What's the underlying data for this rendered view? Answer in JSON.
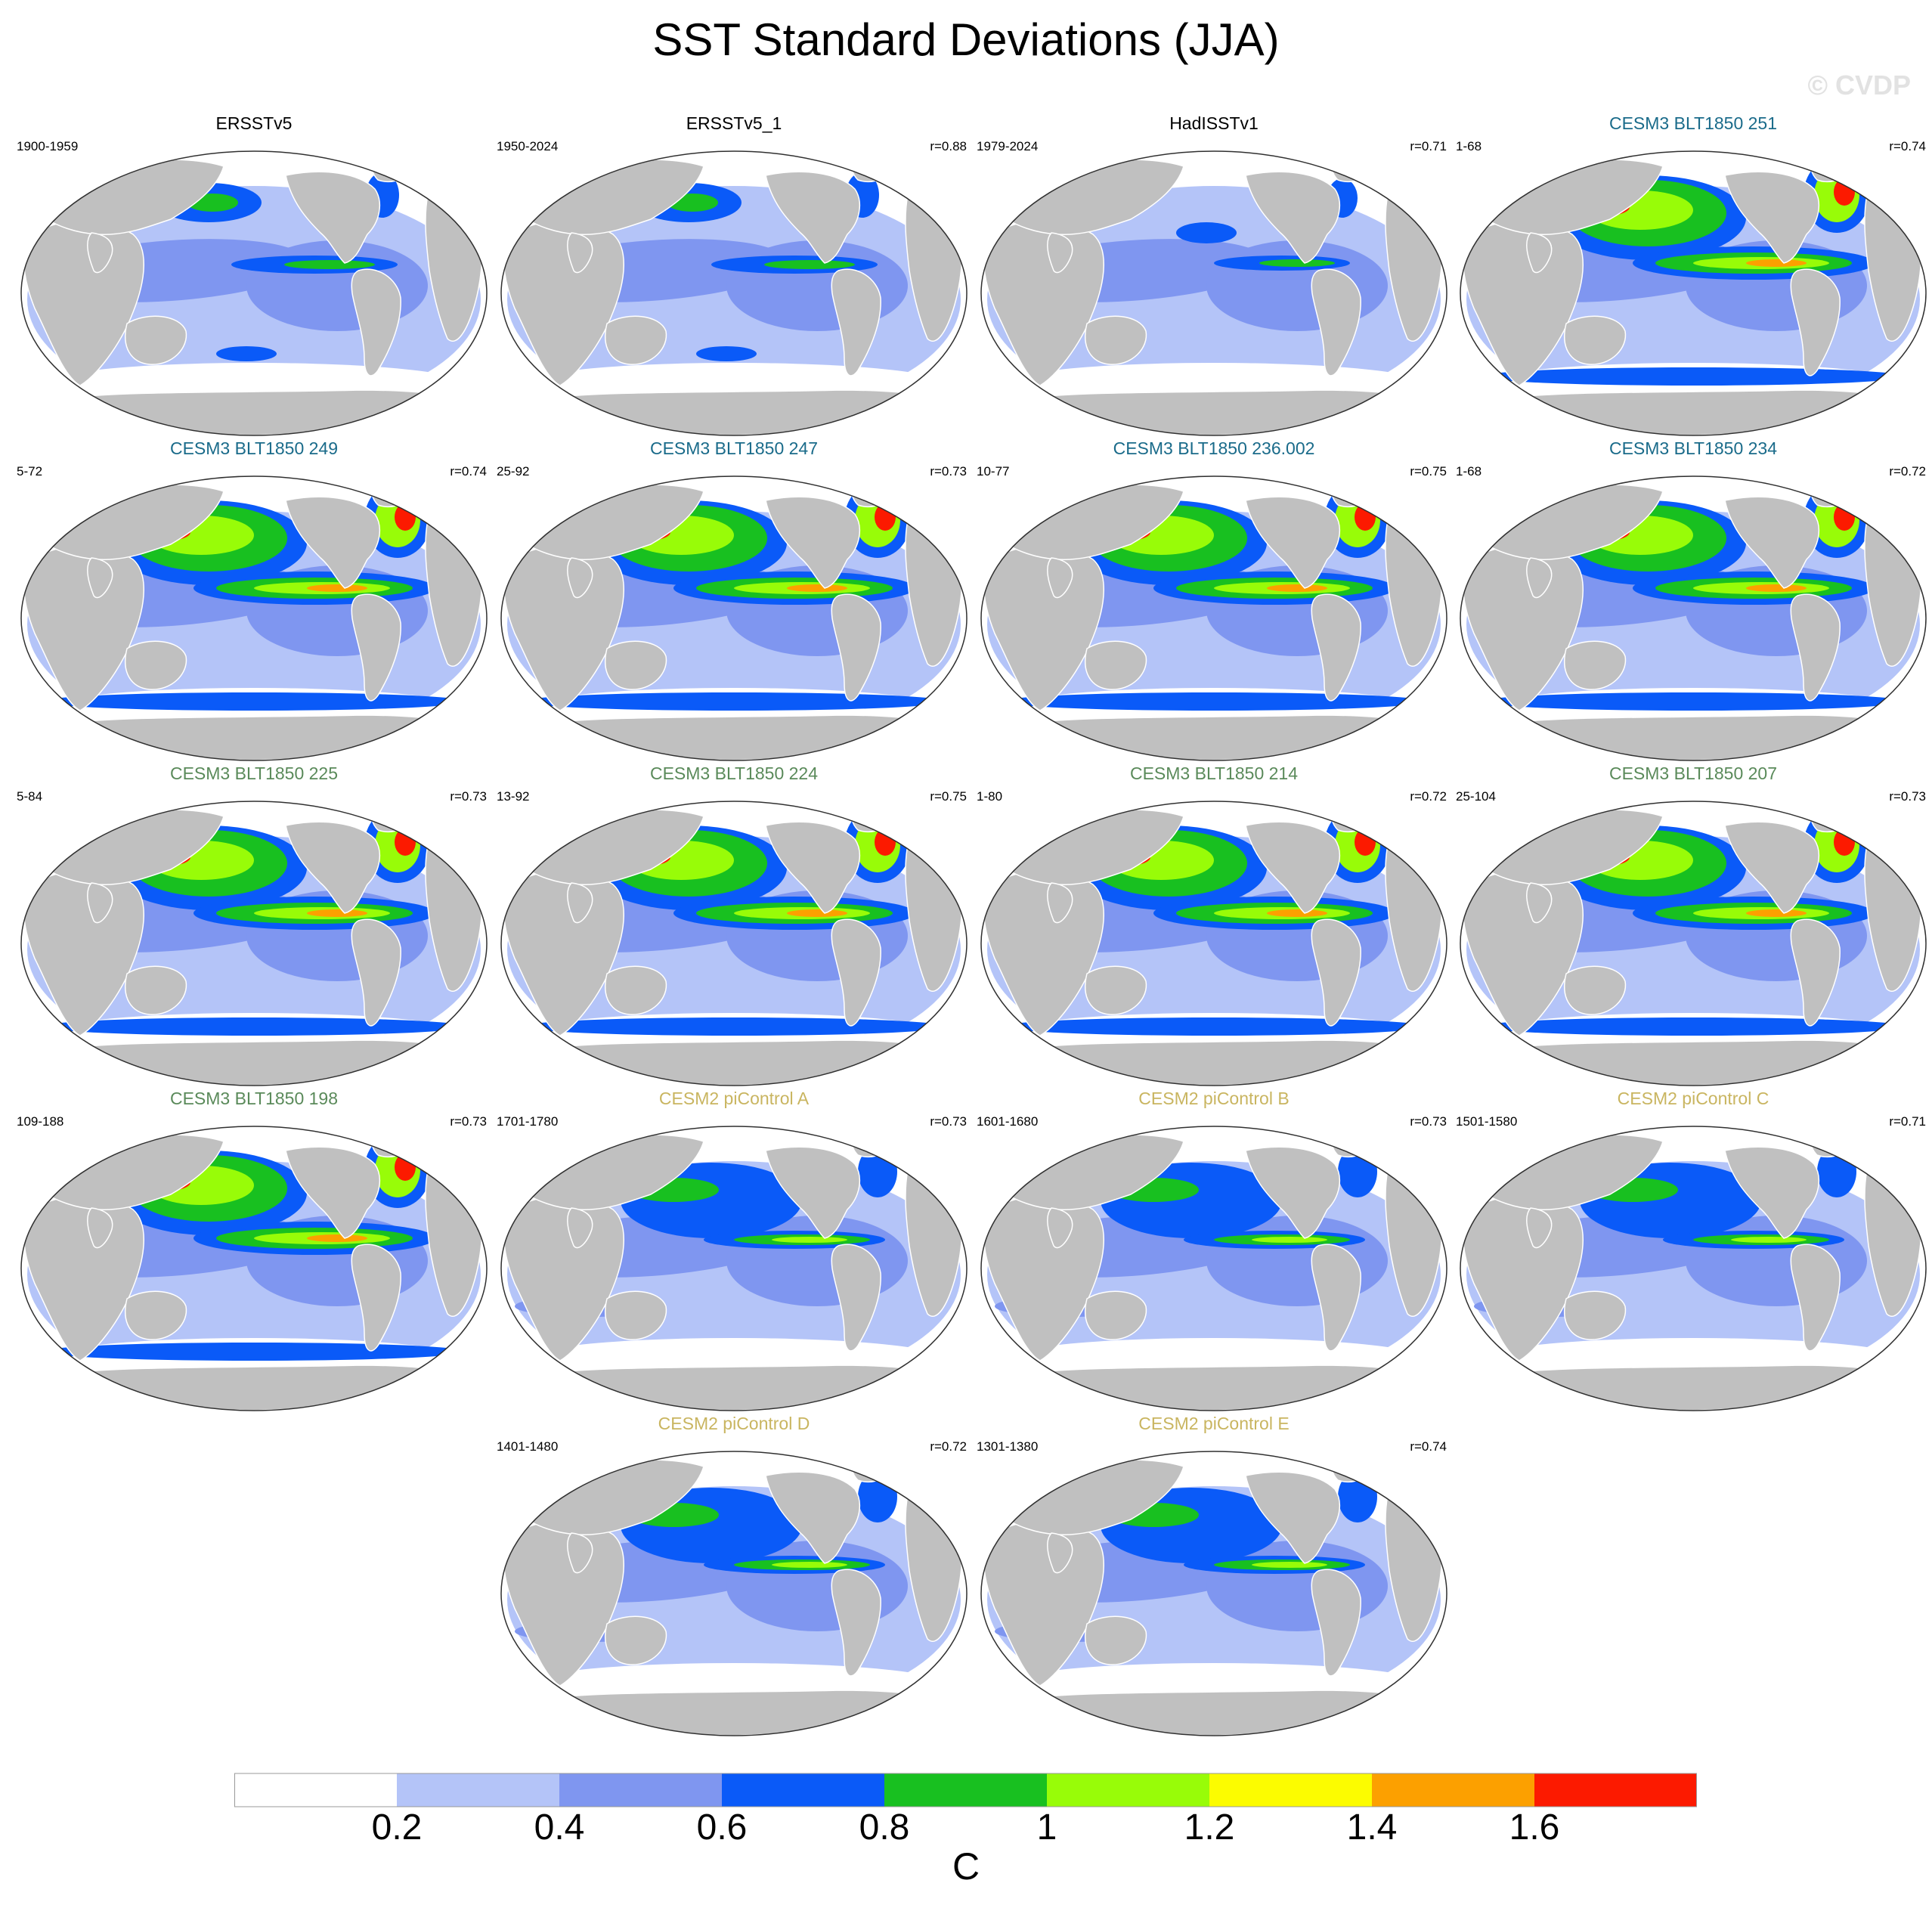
{
  "title": "SST Standard Deviations (JJA)",
  "watermark": "© CVDP",
  "colors": {
    "land": "#c0c0c0",
    "obs_title": "#000000",
    "cesm3_a_title": "#1a6b8a",
    "cesm3_b_title": "#5a8a5a",
    "cesm2_title": "#c9b560"
  },
  "panels": [
    {
      "title": "ERSSTv5",
      "period": "1900-1959",
      "r": "",
      "group": "obs",
      "style": "obs"
    },
    {
      "title": "ERSSTv5_1",
      "period": "1950-2024",
      "r": "r=0.88",
      "group": "obs",
      "style": "obs"
    },
    {
      "title": "HadISSTv1",
      "period": "1979-2024",
      "r": "r=0.71",
      "group": "obs",
      "style": "weak"
    },
    {
      "title": "CESM3 BLT1850 251",
      "period": "1-68",
      "r": "r=0.74",
      "group": "cesm3_a",
      "style": "strong"
    },
    {
      "title": "CESM3 BLT1850 249",
      "period": "5-72",
      "r": "r=0.74",
      "group": "cesm3_a",
      "style": "strong"
    },
    {
      "title": "CESM3 BLT1850 247",
      "period": "25-92",
      "r": "r=0.73",
      "group": "cesm3_a",
      "style": "strong"
    },
    {
      "title": "CESM3 BLT1850 236.002",
      "period": "10-77",
      "r": "r=0.75",
      "group": "cesm3_a",
      "style": "strong"
    },
    {
      "title": "CESM3 BLT1850 234",
      "period": "1-68",
      "r": "r=0.72",
      "group": "cesm3_a",
      "style": "strong"
    },
    {
      "title": "CESM3 BLT1850 225",
      "period": "5-84",
      "r": "r=0.73",
      "group": "cesm3_b",
      "style": "strong"
    },
    {
      "title": "CESM3 BLT1850 224",
      "period": "13-92",
      "r": "r=0.75",
      "group": "cesm3_b",
      "style": "strong"
    },
    {
      "title": "CESM3 BLT1850 214",
      "period": "1-80",
      "r": "r=0.72",
      "group": "cesm3_b",
      "style": "strong"
    },
    {
      "title": "CESM3 BLT1850 207",
      "period": "25-104",
      "r": "r=0.73",
      "group": "cesm3_b",
      "style": "strong"
    },
    {
      "title": "CESM3 BLT1850 198",
      "period": "109-188",
      "r": "r=0.73",
      "group": "cesm3_b",
      "style": "strong"
    },
    {
      "title": "CESM2 piControl A",
      "period": "1701-1780",
      "r": "r=0.73",
      "group": "cesm2",
      "style": "mid"
    },
    {
      "title": "CESM2 piControl B",
      "period": "1601-1680",
      "r": "r=0.73",
      "group": "cesm2",
      "style": "mid"
    },
    {
      "title": "CESM2 piControl C",
      "period": "1501-1580",
      "r": "r=0.71",
      "group": "cesm2",
      "style": "mid"
    },
    {
      "title": "CESM2 piControl D",
      "period": "1401-1480",
      "r": "r=0.72",
      "group": "cesm2",
      "style": "mid"
    },
    {
      "title": "CESM2 piControl E",
      "period": "1301-1380",
      "r": "r=0.74",
      "group": "cesm2",
      "style": "mid"
    }
  ],
  "colorbar": {
    "labels": [
      "0.2",
      "0.4",
      "0.6",
      "0.8",
      "1",
      "1.2",
      "1.4",
      "1.6"
    ],
    "colors": [
      "#ffffff",
      "#b4c4f8",
      "#7f96f0",
      "#0a5af8",
      "#18c020",
      "#98fc08",
      "#fcfc00",
      "#fca000",
      "#fc1a00"
    ],
    "units": "C"
  }
}
